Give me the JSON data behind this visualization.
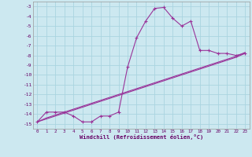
{
  "xlabel": "Windchill (Refroidissement éolien,°C)",
  "bg_color": "#cce8f0",
  "grid_color": "#aad4e0",
  "line_color": "#993399",
  "font_color": "#660066",
  "xlim": [
    -0.5,
    23.5
  ],
  "ylim": [
    -15.5,
    -2.5
  ],
  "xticks": [
    0,
    1,
    2,
    3,
    4,
    5,
    6,
    7,
    8,
    9,
    10,
    11,
    12,
    13,
    14,
    15,
    16,
    17,
    18,
    19,
    20,
    21,
    22,
    23
  ],
  "yticks": [
    -3,
    -4,
    -5,
    -6,
    -7,
    -8,
    -9,
    -10,
    -11,
    -12,
    -13,
    -14,
    -15
  ],
  "line1_x": [
    0,
    1,
    2,
    3,
    4,
    5,
    6,
    7,
    8,
    9,
    10,
    11,
    12,
    13,
    14,
    15,
    16,
    17,
    18,
    19,
    20,
    21,
    22,
    23
  ],
  "line1_y": [
    -14.8,
    -13.8,
    -13.8,
    -13.8,
    -14.2,
    -14.8,
    -14.8,
    -14.2,
    -14.2,
    -13.8,
    -9.2,
    -6.2,
    -4.5,
    -3.2,
    -3.1,
    -4.2,
    -5.0,
    -4.5,
    -7.5,
    -7.5,
    -7.8,
    -7.8,
    -8.0,
    -7.8
  ],
  "line2_x": [
    0,
    1,
    2,
    3,
    4,
    5,
    6,
    7,
    8,
    9,
    10,
    11,
    12,
    13,
    14,
    15,
    16,
    17,
    18,
    19,
    20,
    21,
    22,
    23
  ],
  "line2_y": [
    -14.8,
    -14.5,
    -14.2,
    -13.9,
    -13.6,
    -13.3,
    -13.0,
    -12.7,
    -12.4,
    -12.1,
    -11.8,
    -11.5,
    -11.2,
    -10.9,
    -10.6,
    -10.3,
    -10.0,
    -9.7,
    -9.4,
    -9.1,
    -8.8,
    -8.5,
    -8.2,
    -7.8
  ],
  "line3_x": [
    0,
    1,
    2,
    3,
    4,
    5,
    6,
    7,
    8,
    9,
    10,
    11,
    12,
    13,
    14,
    15,
    16,
    17,
    18,
    19,
    20,
    21,
    22,
    23
  ],
  "line3_y": [
    -14.8,
    -14.4,
    -14.1,
    -13.8,
    -13.5,
    -13.2,
    -12.9,
    -12.6,
    -12.3,
    -12.0,
    -11.7,
    -11.4,
    -11.1,
    -10.8,
    -10.5,
    -10.2,
    -9.9,
    -9.6,
    -9.3,
    -9.0,
    -8.7,
    -8.4,
    -8.1,
    -7.7
  ]
}
